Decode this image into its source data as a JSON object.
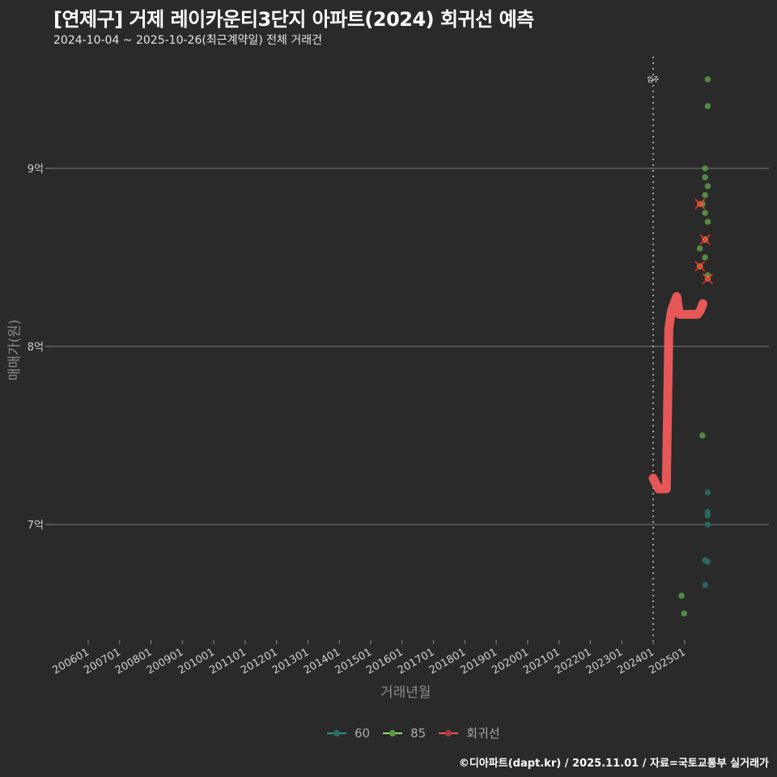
{
  "header": {
    "title": "[연제구] 거제 레이카운티3단지 아파트(2024) 회귀선 예측",
    "subtitle": "2024-10-04 ~ 2025-10-26(최근계약일) 전체 거래건"
  },
  "axes": {
    "ylabel": "매매가(원)",
    "xlabel": "거래년월",
    "yticks": [
      "9억",
      "8억",
      "7억"
    ],
    "xticks": [
      "200601",
      "200701",
      "200801",
      "200901",
      "201001",
      "201101",
      "201201",
      "201301",
      "201401",
      "201501",
      "201601",
      "201701",
      "201801",
      "201901",
      "202001",
      "202101",
      "202201",
      "202301",
      "202401",
      "202501"
    ],
    "annotation": "입주"
  },
  "legend": {
    "items": [
      {
        "label": "60",
        "color": "#2f8f8a"
      },
      {
        "label": "85",
        "color": "#8fe06a"
      },
      {
        "label": "회귀선",
        "color": "#f05a5a"
      }
    ]
  },
  "footer": {
    "caption": "©디아파트(dapt.kr) / 2025.11.01 / 자료=국토교통부 실거래가"
  },
  "chart_data": {
    "type": "scatter",
    "title": "[연제구] 거제 레이카운티3단지 아파트(2024) 회귀선 예측",
    "subtitle": "2024-10-04 ~ 2025-10-26(최근계약일) 전체 거래건",
    "xlabel": "거래년월",
    "ylabel": "매매가(원)",
    "ylim_eok": [
      6.4,
      9.65
    ],
    "y_tick_values_eok": [
      7,
      8,
      9
    ],
    "x_range": [
      "2005-06",
      "2026-06"
    ],
    "grid": "horizontal major only",
    "legend_position": "bottom",
    "vline": {
      "x": "2024-01",
      "label": "입주",
      "style": "dotted"
    },
    "series": [
      {
        "name": "60",
        "color": "#2f8f8a",
        "points": [
          {
            "x": "2025-08",
            "y_eok": 7.18
          },
          {
            "x": "2025-08",
            "y_eok": 7.07
          },
          {
            "x": "2025-08",
            "y_eok": 7.05
          },
          {
            "x": "2025-08",
            "y_eok": 7.0
          },
          {
            "x": "2025-07",
            "y_eok": 6.8
          },
          {
            "x": "2025-08",
            "y_eok": 6.79
          },
          {
            "x": "2025-07",
            "y_eok": 6.66
          }
        ]
      },
      {
        "name": "85",
        "color": "#8fe06a",
        "points": [
          {
            "x": "2025-08",
            "y_eok": 9.5
          },
          {
            "x": "2025-08",
            "y_eok": 9.35
          },
          {
            "x": "2025-07",
            "y_eok": 9.0
          },
          {
            "x": "2025-07",
            "y_eok": 8.95
          },
          {
            "x": "2025-08",
            "y_eok": 8.9
          },
          {
            "x": "2025-07",
            "y_eok": 8.85
          },
          {
            "x": "2025-06",
            "y_eok": 8.8
          },
          {
            "x": "2025-07",
            "y_eok": 8.75
          },
          {
            "x": "2025-08",
            "y_eok": 8.7
          },
          {
            "x": "2025-07",
            "y_eok": 8.6
          },
          {
            "x": "2025-05",
            "y_eok": 8.55
          },
          {
            "x": "2025-07",
            "y_eok": 8.5
          },
          {
            "x": "2025-05",
            "y_eok": 8.45
          },
          {
            "x": "2025-08",
            "y_eok": 8.4
          },
          {
            "x": "2025-06",
            "y_eok": 7.5
          },
          {
            "x": "2024-10",
            "y_eok": 6.6
          },
          {
            "x": "2024-11",
            "y_eok": 6.5
          }
        ]
      },
      {
        "name": "outliers (X marked)",
        "color": "#ff2a2a",
        "points": [
          {
            "x": "2025-05",
            "y_eok": 8.8
          },
          {
            "x": "2025-07",
            "y_eok": 8.6
          },
          {
            "x": "2025-05",
            "y_eok": 8.45
          },
          {
            "x": "2025-08",
            "y_eok": 8.38
          }
        ]
      },
      {
        "name": "회귀선",
        "color": "#f05a5a",
        "type": "line",
        "points": [
          {
            "x": "2024-01",
            "y_eok": 7.26
          },
          {
            "x": "2024-03",
            "y_eok": 7.2
          },
          {
            "x": "2024-06",
            "y_eok": 7.2
          },
          {
            "x": "2024-07",
            "y_eok": 8.1
          },
          {
            "x": "2024-08",
            "y_eok": 8.2
          },
          {
            "x": "2024-10",
            "y_eok": 8.28
          },
          {
            "x": "2024-11",
            "y_eok": 8.18
          },
          {
            "x": "2025-06",
            "y_eok": 8.18
          },
          {
            "x": "2025-07",
            "y_eok": 8.2
          },
          {
            "x": "2025-08",
            "y_eok": 8.24
          }
        ]
      }
    ]
  }
}
